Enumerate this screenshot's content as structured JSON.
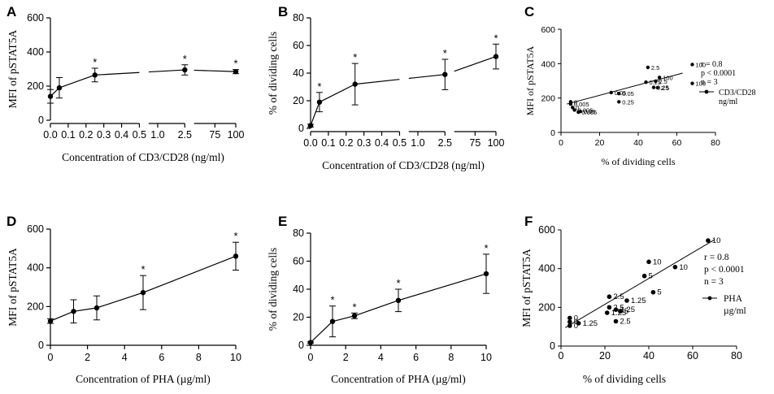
{
  "figure": {
    "width": 952,
    "height": 485
  },
  "chart_data": [
    {
      "id": "A",
      "panel": "A",
      "type": "line",
      "title": "",
      "xlabel": "Concentration of CD3/CD28 (ng/ml)",
      "ylabel": "MFI of pSTAT5A",
      "ylim": [
        0,
        600
      ],
      "yticks": [
        0,
        200,
        400,
        600
      ],
      "broken_x": true,
      "segments": [
        {
          "range": [
            0,
            0.5
          ],
          "ticks": [
            0.0,
            0.1,
            0.2,
            0.3,
            0.4,
            0.5
          ],
          "tick_labels": [
            "0.0",
            "0.1",
            "0.2",
            "0.3",
            "0.4",
            "0.5"
          ]
        },
        {
          "range": [
            0.5,
            2.5
          ],
          "ticks": [
            1.0,
            2.5
          ],
          "tick_labels": [
            "1.0",
            "2.5"
          ]
        },
        {
          "range": [
            50,
            100
          ],
          "ticks": [
            75,
            100
          ],
          "tick_labels": [
            "75",
            "100"
          ]
        }
      ],
      "points": [
        {
          "x": 0,
          "y": 140,
          "err": 40,
          "sig": false
        },
        {
          "x": 0.05,
          "y": 190,
          "err": 60,
          "sig": false
        },
        {
          "x": 0.25,
          "y": 265,
          "err": 40,
          "sig": true
        },
        {
          "x": 2.5,
          "y": 295,
          "err": 30,
          "sig": true
        },
        {
          "x": 100,
          "y": 285,
          "err": 12,
          "sig": true
        }
      ],
      "sig_label": "*"
    },
    {
      "id": "B",
      "panel": "B",
      "type": "line",
      "title": "",
      "xlabel": "Concentration of CD3/CD28 (ng/ml)",
      "ylabel": "% of dividing cells",
      "ylim": [
        0,
        80
      ],
      "yticks": [
        0,
        20,
        40,
        60,
        80
      ],
      "broken_x": true,
      "segments": [
        {
          "range": [
            0,
            0.5
          ],
          "ticks": [
            0.0,
            0.1,
            0.2,
            0.3,
            0.4,
            0.5
          ],
          "tick_labels": [
            "0.0",
            "0.1",
            "0.2",
            "0.3",
            "0.4",
            "0.5"
          ]
        },
        {
          "range": [
            0.5,
            2.5
          ],
          "ticks": [
            1.0,
            2.5
          ],
          "tick_labels": [
            "1.0",
            "2.5"
          ]
        },
        {
          "range": [
            50,
            100
          ],
          "ticks": [
            75,
            100
          ],
          "tick_labels": [
            "75",
            "100"
          ]
        }
      ],
      "points": [
        {
          "x": 0,
          "y": 2,
          "err": 1,
          "sig": false
        },
        {
          "x": 0.05,
          "y": 19,
          "err": 7,
          "sig": true
        },
        {
          "x": 0.25,
          "y": 32,
          "err": 15,
          "sig": true
        },
        {
          "x": 2.5,
          "y": 39,
          "err": 11,
          "sig": true
        },
        {
          "x": 100,
          "y": 52,
          "err": 9,
          "sig": true
        }
      ],
      "sig_label": "*"
    },
    {
      "id": "C",
      "panel": "C",
      "type": "scatter",
      "title": "",
      "xlabel": "% of dividing cells",
      "ylabel": "MFI of pSTAT5A",
      "xlim": [
        0,
        80
      ],
      "ylim": [
        0,
        600
      ],
      "xticks": [
        0,
        20,
        40,
        60,
        80
      ],
      "yticks": [
        0,
        200,
        400,
        600
      ],
      "points": [
        {
          "x": 5,
          "y": 178,
          "label": "0"
        },
        {
          "x": 5,
          "y": 165,
          "label": "0.005"
        },
        {
          "x": 6,
          "y": 145,
          "label": "0"
        },
        {
          "x": 7,
          "y": 130,
          "label": "0.005"
        },
        {
          "x": 10,
          "y": 122,
          "label": "0.05"
        },
        {
          "x": 9,
          "y": 118,
          "label": "0.005"
        },
        {
          "x": 26,
          "y": 232,
          "label": "0.05"
        },
        {
          "x": 30,
          "y": 226,
          "label": "0.05"
        },
        {
          "x": 30,
          "y": 178,
          "label": "0.25"
        },
        {
          "x": 44,
          "y": 292,
          "label": "0.25"
        },
        {
          "x": 45,
          "y": 378,
          "label": "2.5"
        },
        {
          "x": 48,
          "y": 262,
          "label": "0.25"
        },
        {
          "x": 49,
          "y": 298,
          "label": "2.5"
        },
        {
          "x": 50,
          "y": 260,
          "label": "2.5"
        },
        {
          "x": 51,
          "y": 320,
          "label": "100"
        },
        {
          "x": 68,
          "y": 395,
          "label": "100"
        },
        {
          "x": 68,
          "y": 285,
          "label": "100"
        }
      ],
      "fit": {
        "x0": 3,
        "y0": 165,
        "x1": 63,
        "y1": 345
      },
      "stats": [
        "r = 0.8",
        "p < 0.0001",
        "n = 3"
      ],
      "legend": {
        "label_line1": "CD3/CD28",
        "label_line2": "ng/ml"
      }
    },
    {
      "id": "D",
      "panel": "D",
      "type": "line",
      "title": "",
      "xlabel": "Concentration of PHA (µg/ml)",
      "ylabel": "MFI of pSTAT5A",
      "xlim": [
        0,
        10
      ],
      "ylim": [
        0,
        600
      ],
      "xticks": [
        0,
        2,
        4,
        6,
        8,
        10
      ],
      "yticks": [
        0,
        200,
        400,
        600
      ],
      "points": [
        {
          "x": 0,
          "y": 125,
          "err": 12,
          "sig": false
        },
        {
          "x": 1.25,
          "y": 175,
          "err": 60,
          "sig": false
        },
        {
          "x": 2.5,
          "y": 193,
          "err": 62,
          "sig": false
        },
        {
          "x": 5,
          "y": 272,
          "err": 88,
          "sig": true
        },
        {
          "x": 10,
          "y": 460,
          "err": 72,
          "sig": true
        }
      ],
      "sig_label": "*"
    },
    {
      "id": "E",
      "panel": "E",
      "type": "line",
      "title": "",
      "xlabel": "Concentration of PHA (µg/ml)",
      "ylabel": "% of dividing cells",
      "xlim": [
        0,
        10
      ],
      "ylim": [
        0,
        80
      ],
      "xticks": [
        0,
        2,
        4,
        6,
        8,
        10
      ],
      "yticks": [
        0,
        20,
        40,
        60,
        80
      ],
      "points": [
        {
          "x": 0,
          "y": 2,
          "err": 0.5,
          "sig": false
        },
        {
          "x": 1.25,
          "y": 17,
          "err": 11,
          "sig": true
        },
        {
          "x": 2.5,
          "y": 21,
          "err": 2,
          "sig": true
        },
        {
          "x": 5,
          "y": 32,
          "err": 8,
          "sig": true
        },
        {
          "x": 10,
          "y": 51,
          "err": 14,
          "sig": true
        }
      ],
      "sig_label": "*"
    },
    {
      "id": "F",
      "panel": "F",
      "type": "scatter",
      "title": "",
      "xlabel": "% of dividing cells",
      "ylabel": "MFI of pSTAT5A",
      "xlim": [
        0,
        80
      ],
      "ylim": [
        0,
        600
      ],
      "xticks": [
        0,
        20,
        40,
        60,
        80
      ],
      "yticks": [
        0,
        200,
        400,
        600
      ],
      "points": [
        {
          "x": 4,
          "y": 145,
          "label": "0"
        },
        {
          "x": 4,
          "y": 125,
          "label": "0"
        },
        {
          "x": 4,
          "y": 105,
          "label": "0"
        },
        {
          "x": 8,
          "y": 118,
          "label": "1.25"
        },
        {
          "x": 21,
          "y": 172,
          "label": "1.25"
        },
        {
          "x": 22,
          "y": 200,
          "label": "2.5"
        },
        {
          "x": 22,
          "y": 255,
          "label": "2.5"
        },
        {
          "x": 25,
          "y": 188,
          "label": "1.25"
        },
        {
          "x": 25,
          "y": 128,
          "label": "2.5"
        },
        {
          "x": 27,
          "y": 180,
          "label": "5"
        },
        {
          "x": 30,
          "y": 235,
          "label": "1.25"
        },
        {
          "x": 38,
          "y": 362,
          "label": "5"
        },
        {
          "x": 40,
          "y": 435,
          "label": "10"
        },
        {
          "x": 42,
          "y": 278,
          "label": "5"
        },
        {
          "x": 52,
          "y": 408,
          "label": "10"
        },
        {
          "x": 67,
          "y": 545,
          "label": "10"
        }
      ],
      "fit": {
        "x0": 2,
        "y0": 95,
        "x1": 70,
        "y1": 550
      },
      "stats": [
        "r = 0.8",
        "p < 0.0001",
        "n = 3"
      ],
      "legend": {
        "label_line1": "PHA",
        "label_line2": "µg/ml"
      }
    }
  ]
}
